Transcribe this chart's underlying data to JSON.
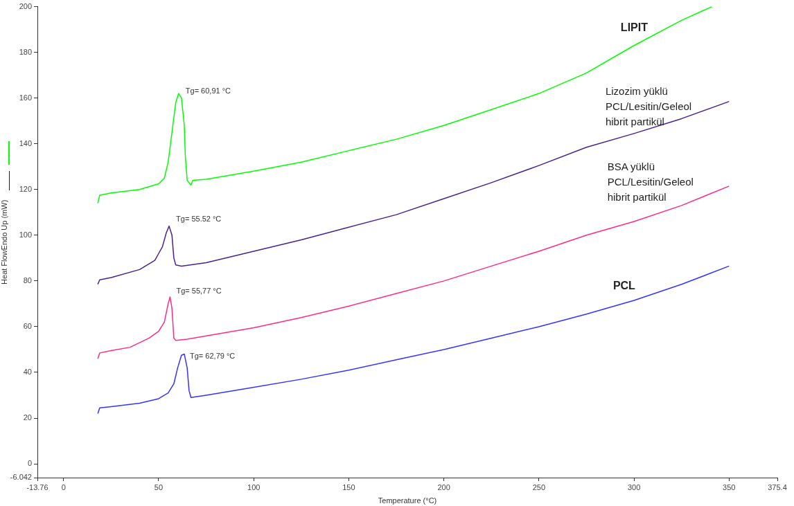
{
  "chart_data": {
    "type": "line",
    "xlabel": "Temperature (°C)",
    "ylabel": "Heat FlowEndo Up (mW)",
    "xlim": [
      -13.76,
      375.4
    ],
    "xticks": [
      -13.76,
      0,
      50,
      100,
      150,
      200,
      250,
      300,
      350,
      375.4
    ],
    "ylim": [
      -6.042,
      200
    ],
    "yticks": [
      -6.042,
      0,
      20,
      40,
      60,
      80,
      100,
      120,
      140,
      160,
      180,
      200
    ],
    "grid": false,
    "legend": false,
    "marker": "none",
    "line_style": "solid",
    "annotations": [
      {
        "text": "Tg= 60,91 °C",
        "x": 60.5,
        "y": 162
      },
      {
        "text": "Tg= 55.52 °C",
        "x": 55.5,
        "y": 104
      },
      {
        "text": "Tg= 55,77 °C",
        "x": 56,
        "y": 73
      },
      {
        "text": "Tg= 62,79 °C",
        "x": 63.5,
        "y": 48
      }
    ],
    "series": [
      {
        "name": "LIPIT",
        "color": "#00ff00",
        "x": [
          18,
          19,
          25,
          40,
          50,
          53,
          55,
          57,
          59,
          60.5,
          62,
          63.5,
          64,
          65,
          66,
          67,
          68,
          75,
          100,
          125,
          150,
          175,
          200,
          225,
          250,
          275,
          300,
          325,
          341
        ],
        "values": [
          114,
          117.5,
          118.5,
          120,
          122.5,
          125,
          132,
          145,
          158,
          162,
          160,
          148,
          135,
          124,
          123,
          122,
          124,
          124.5,
          128,
          132,
          137,
          142,
          148,
          155,
          162,
          171,
          183,
          194,
          200
        ]
      },
      {
        "name": "Lizozim yüklü PCL/Lesitin/Geleol hibrit partikül",
        "color": "#4b2090",
        "x": [
          18,
          19,
          25,
          40,
          48,
          50,
          52,
          54,
          55.5,
          57,
          58,
          59,
          62,
          75,
          100,
          125,
          150,
          175,
          200,
          225,
          250,
          275,
          300,
          325,
          350
        ],
        "values": [
          78.5,
          80.5,
          81.5,
          85,
          89,
          92,
          95,
          101,
          104,
          100,
          90,
          87,
          86.5,
          88,
          93,
          98,
          103.5,
          109,
          116,
          123,
          130.5,
          138.5,
          144.5,
          151,
          158.5
        ]
      },
      {
        "name": "BSA yüklü PCL/Lesitin/Geleol hibrit partikül",
        "color": "#ff2a8a",
        "x": [
          18,
          19,
          25,
          35,
          45,
          50,
          53,
          55,
          56,
          57,
          58,
          59,
          65,
          100,
          125,
          150,
          175,
          200,
          225,
          250,
          275,
          300,
          325,
          350
        ],
        "values": [
          46,
          48.5,
          49.5,
          51,
          55,
          58,
          62,
          70,
          73,
          68,
          55,
          54,
          54.5,
          59.5,
          64,
          69,
          74.5,
          80,
          86.5,
          93,
          100,
          106,
          113,
          121.5
        ]
      },
      {
        "name": "PCL",
        "color": "#3333ff",
        "x": [
          18,
          19,
          25,
          40,
          50,
          55,
          58,
          60,
          62,
          63.5,
          65,
          66,
          67,
          75,
          100,
          125,
          150,
          175,
          200,
          225,
          250,
          275,
          300,
          325,
          350
        ],
        "values": [
          22,
          24.5,
          25,
          26.5,
          28.5,
          31,
          35,
          42,
          47.5,
          48,
          42,
          32,
          29,
          30,
          33.5,
          37,
          41,
          45.5,
          50,
          55,
          60,
          65.5,
          71.5,
          78.5,
          86.5
        ]
      }
    ]
  }
}
